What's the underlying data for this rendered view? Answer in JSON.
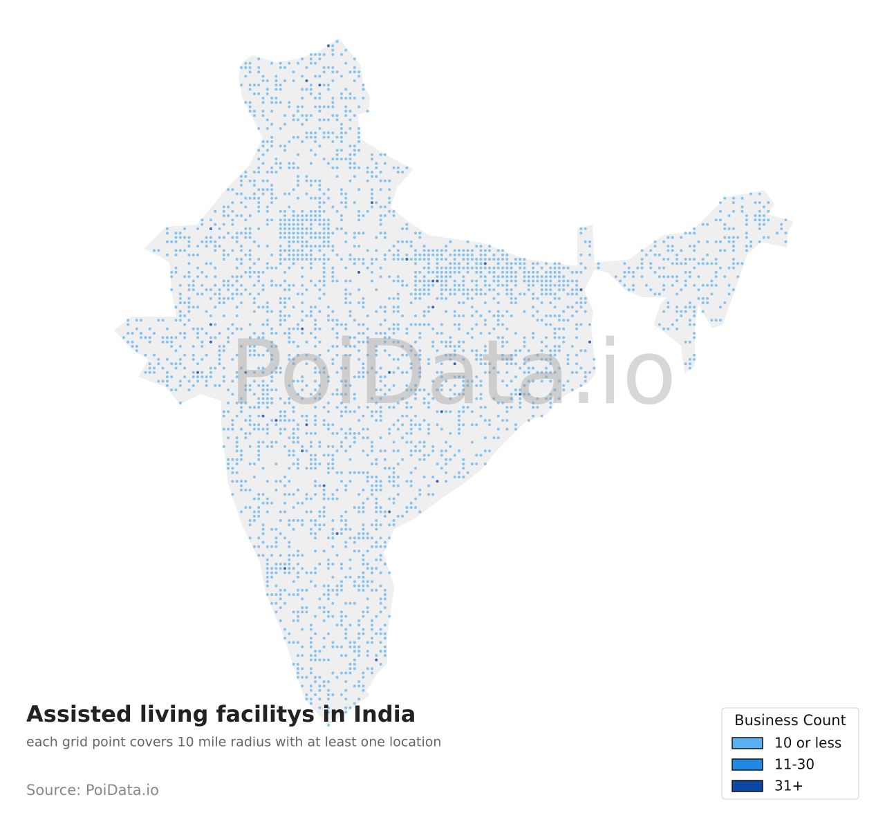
{
  "title": "Assisted living facilitys in India",
  "subtitle": "each grid point covers 10 mile radius with at least one location",
  "source": "Source: PoiData.io",
  "watermark": "PoiData.io",
  "legend": {
    "title": "Business Count",
    "items": [
      {
        "label": "10 or less",
        "color": "#5aaff0"
      },
      {
        "label": "11-30",
        "color": "#1e8ae6"
      },
      {
        "label": "31+",
        "color": "#0d47a1"
      }
    ]
  }
}
